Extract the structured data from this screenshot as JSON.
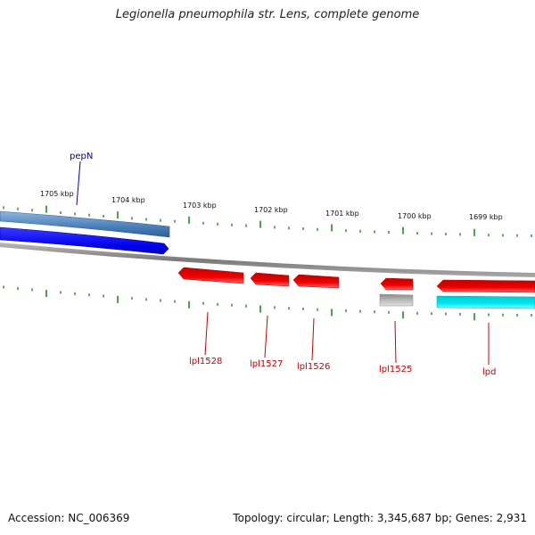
{
  "title": "Legionella pneumophila str. Lens, complete genome",
  "footer": {
    "accession": "Accession: NC_006369",
    "stats": "Topology: circular; Length: 3,345,687 bp; Genes: 2,931"
  },
  "scale_labels": [
    "1705 kbp",
    "1704 kbp",
    "1703 kbp",
    "1702 kbp",
    "1701 kbp",
    "1700 kbp",
    "1699 kbp"
  ],
  "colors": {
    "forward_gene_top": "#5a8ec4",
    "forward_gene_blue": "#0000ee",
    "reverse_gene": "#ee0000",
    "reverse_gene_cyan": "#00e5ee",
    "pseudo_gene": "#b8b8b8",
    "backbone": "#888888",
    "ticks": "#228b22",
    "forward_label": "#000099",
    "reverse_label": "#cc0000"
  },
  "genes": {
    "pepN": "pepN",
    "lpl1528": "lpl1528",
    "lpl1527": "lpl1527",
    "lpl1526": "lpl1526",
    "lpl1525": "lpl1525",
    "lpd": "lpd"
  }
}
